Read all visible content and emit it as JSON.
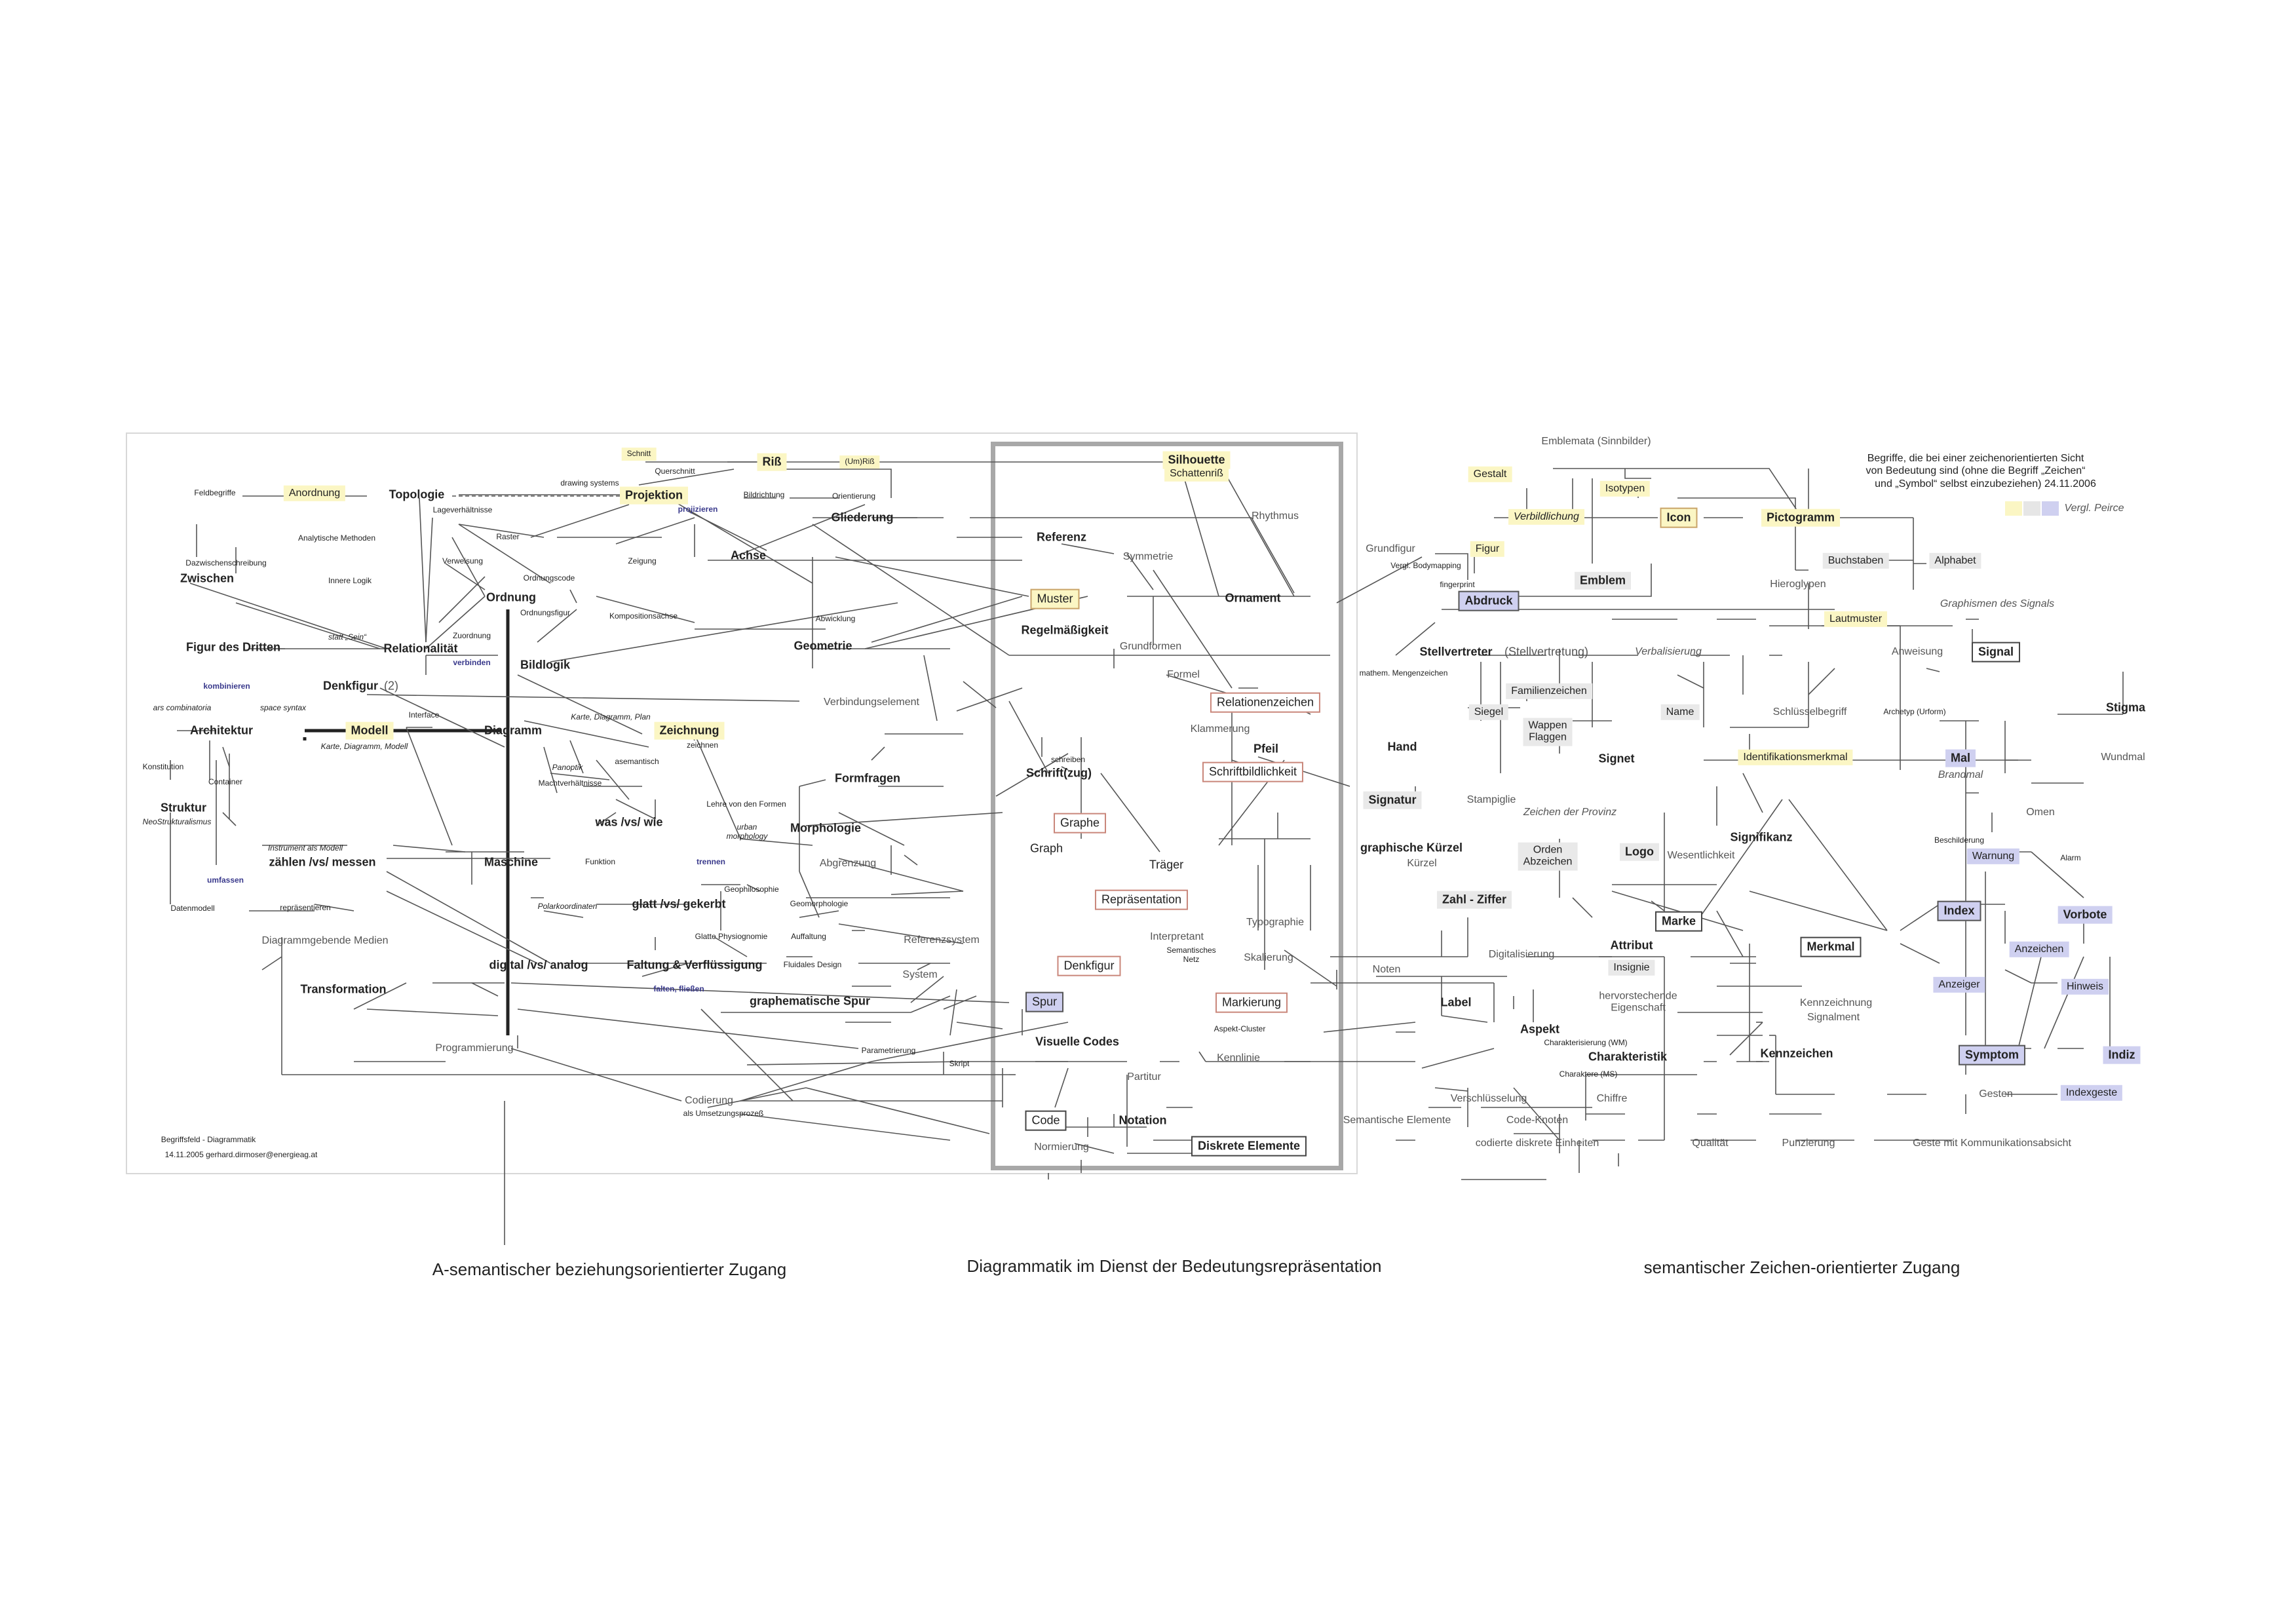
{
  "captions": {
    "left": "A-semantischer beziehungsorientierter Zugang",
    "center": "Diagrammatik im Dienst der Bedeutungsrepräsentation",
    "right": "semantischer Zeichen-orientierter Zugang"
  },
  "footer": {
    "line1": "Begriffsfeld - Diagrammatik",
    "line2": "14.11.2005 gerhard.dirmoser@energieag.at"
  },
  "note": {
    "line1": "Begriffe, die bei einer zeichenorientierten Sicht",
    "line2": "von Bedeutung sind (ohne die Begriff „Zeichen“",
    "line3": "und „Symbol“ selbst einzubeziehen)    24.11.2006",
    "legend": "Vergl. Peirce"
  },
  "legend_colors": [
    "#fbf6c4",
    "#e6e6e6",
    "#cfd0f0"
  ],
  "nodes": {
    "schnitt": "Schnitt",
    "querschnitt": "Querschnitt",
    "riss": "Riß",
    "umriss": "(Um)Riß",
    "silhouette": "Silhouette",
    "schattenriss": "Schattenriß",
    "feldbegriffe": "Feldbegriffe",
    "anordnung": "Anordnung",
    "topologie": "Topologie",
    "drawing_systems": "drawing systems",
    "projektion": "Projektion",
    "projizieren": "projizieren",
    "bildrichtung": "Bildrichtung",
    "orientierung": "Orientierung",
    "gliederung": "Gliederung",
    "rhythmus": "Rhythmus",
    "lageverhaeltnisse": "Lageverhältnisse",
    "analytische_methoden": "Analytische Methoden",
    "raster": "Raster",
    "referenz": "Referenz",
    "dazwischenschreibung": "Dazwischenschreibung",
    "zwischen": "Zwischen",
    "verweisung": "Verweisung",
    "zeigung": "Zeigung",
    "achse": "Achse",
    "symmetrie": "Symmetrie",
    "innere_logik": "Innere Logik",
    "ordnungscode": "Ordnungscode",
    "ordnung": "Ordnung",
    "muster": "Muster",
    "ornament": "Ornament",
    "ordnungsfigur": "Ordnungsfigur",
    "kompositionsachse": "Kompositionsachse",
    "abwicklung": "Abwicklung",
    "regelmaessigkeit": "Regelmäßigkeit",
    "zuordnung": "Zuordnung",
    "geometrie": "Geometrie",
    "grundformen": "Grundformen",
    "stett_sein": "statt „Sein“",
    "figur_des_dritten": "Figur des Dritten",
    "relationalitaet": "Relationalität",
    "bildlogik": "Bildlogik",
    "verbinden": "verbinden",
    "formel": "Formel",
    "kombinieren": "kombinieren",
    "denkfigur2": "Denkfigur",
    "denkfigur2_num": "(2)",
    "mathem": "mathem. Mengenzeichen",
    "relationenzeichen": "Relationenzeichen",
    "ars": "ars combinatoria",
    "space_syntax": "space syntax",
    "interface": "Interface",
    "karte_diagramm_plan": "Karte, Diagramm, Plan",
    "verbindungselement": "Verbindungselement",
    "klammerung": "Klammerung",
    "architektur": "Architektur",
    "modell": "Modell",
    "diagramm": "Diagramm",
    "zeichnung": "Zeichnung",
    "pfeil": "Pfeil",
    "hand": "Hand",
    "karte_diagramm_modell": "Karte, Diagramm, Modell",
    "zeichnen": "zeichnen",
    "schreiben": "schreiben",
    "panoptik": "Panoptik",
    "asemantisch": "asemantisch",
    "formfragen": "Formfragen",
    "schriftzug": "Schrift(zug)",
    "schriftbildlichkeit": "Schriftbildlichkeit",
    "konstitution": "Konstitution",
    "container": "Container",
    "machtverhaeltnisse": "Machtverhältnisse",
    "lehre": "Lehre von den Formen",
    "signatur": "Signatur",
    "stampiglie": "Stampiglie",
    "struktur": "Struktur",
    "neostrukt": "NeoStrukturalismus",
    "was_vs_wie": "was /vs/ wie",
    "graphe": "Graphe",
    "morphologie": "Morphologie",
    "urban": "urban\nmorphology",
    "instrument": "Instrument als Modell",
    "zaehlen": "zählen /vs/ messen",
    "graph": "Graph",
    "graphische_kuerzel": "graphische Kürzel",
    "kuerzel": "Kürzel",
    "maschine": "Maschine",
    "funktion": "Funktion",
    "abgrenzung": "Abgrenzung",
    "traeger": "Träger",
    "umfassen": "umfassen",
    "trennen": "trennen",
    "geophilosophie": "Geophilosophie",
    "datenmodell": "Datenmodell",
    "repraesentieren": "repräsentieren",
    "polarkoordinaten": "Polarkoordinaten",
    "glatt": "glatt /vs/ gekerbt",
    "geomorphologie": "Geomorphologie",
    "repraesentation": "Repräsentation",
    "zahl_ziffer": "Zahl - Ziffer",
    "typographie": "Typographie",
    "referenzsystem": "Referenzsystem",
    "diagrammgebende": "Diagrammgebende Medien",
    "glatte_physiognomie": "Glatte Physiognomie",
    "auffaltung": "Auffaltung",
    "interpretant": "Interpretant",
    "semantisches_netz": "Semantisches\nNetz",
    "digital_analog": "digital /vs/ analog",
    "faltung": "Faltung & Verflüssigung",
    "fluidales": "Fluidales Design",
    "denkfigur": "Denkfigur",
    "skalierung": "Skalierung",
    "noten": "Noten",
    "system": "System",
    "transformation": "Transformation",
    "falten": "falten, fließen",
    "graphematische_spur": "graphematische Spur",
    "spur": "Spur",
    "markierung": "Markierung",
    "label": "Label",
    "aspekt_cluster": "Aspekt-Cluster",
    "programmierung": "Programmierung",
    "parametrierung": "Parametrierung",
    "visuelle_codes": "Visuelle Codes",
    "skript": "Skript",
    "kennlinie": "Kennlinie",
    "partitur": "Partitur",
    "codierung": "Codierung",
    "umsetzung": "als Umsetzungsprozeß",
    "code": "Code",
    "notation": "Notation",
    "normierung": "Normierung",
    "diskrete_elemente": "Diskrete Elemente",
    "emblemata": "Emblemata (Sinnbilder)",
    "gestalt": "Gestalt",
    "isotypen": "Isotypen",
    "verbildlichung": "Verbildlichung",
    "icon": "Icon",
    "pictogramm": "Pictogramm",
    "grundfigur": "Grundfigur",
    "figur": "Figur",
    "bodymapping": "Vergl. Bodymapping",
    "emblem": "Emblem",
    "buchstaben": "Buchstaben",
    "alphabet": "Alphabet",
    "hieroglypen": "Hieroglypen",
    "fingerprint": "fingerprint",
    "abdruck": "Abdruck",
    "lautmuster": "Lautmuster",
    "graphismen": "Graphismen des Signals",
    "stellvertreter": "Stellvertreter",
    "stellvertretung": "(Stellvertretung)",
    "verbalisierung": "Verbalisierung",
    "anweisung": "Anweisung",
    "signal": "Signal",
    "familienzeichen": "Familienzeichen",
    "siegel": "Siegel",
    "name": "Name",
    "schluesselbegriff": "Schlüsselbegriff",
    "archetyp": "Archetyp (Urform)",
    "stigma": "Stigma",
    "wappen": "Wappen\nFlaggen",
    "signet": "Signet",
    "identifikationsmerkmal": "Identifikationsmerkmal",
    "mal": "Mal",
    "brandmal": "Brandmal",
    "wundmal": "Wundmal",
    "zeichen_provinz": "Zeichen der Provinz",
    "omen": "Omen",
    "signifikanz": "Signifikanz",
    "beschilderung": "Beschilderung",
    "orden": "Orden\nAbzeichen",
    "logo": "Logo",
    "wesentlichkeit": "Wesentlichkeit",
    "warnung": "Warnung",
    "alarm": "Alarm",
    "marke": "Marke",
    "index": "Index",
    "vorbote": "Vorbote",
    "attribut": "Attribut",
    "merkmal": "Merkmal",
    "anzeichen": "Anzeichen",
    "insignie": "Insignie",
    "digitalisierung": "Digitalisierung",
    "anzeiger": "Anzeiger",
    "hinweis": "Hinweis",
    "hervorstechende": "hervorstechende\nEigenschaft",
    "kennzeichnung": "Kennzeichnung",
    "signalment": "Signalment",
    "aspekt": "Aspekt",
    "charakterisierung": "Charakterisierung (WM)",
    "charakteristik": "Charakteristik",
    "kennzeichen": "Kennzeichen",
    "symptom": "Symptom",
    "indiz": "Indiz",
    "charaktere": "Charaktere (MS)",
    "gesten": "Gesten",
    "indexgeste": "Indexgeste",
    "verschluesselung": "Verschlüsselung",
    "chiffre": "Chiffre",
    "semantische_elemente": "Semantische Elemente",
    "code_knoten": "Code-Knoten",
    "codierte": "codierte diskrete Einheiten",
    "qualitaet": "Qualität",
    "punzierung": "Punzierung",
    "geste_komm": "Geste mit Kommunikationsabsicht"
  }
}
